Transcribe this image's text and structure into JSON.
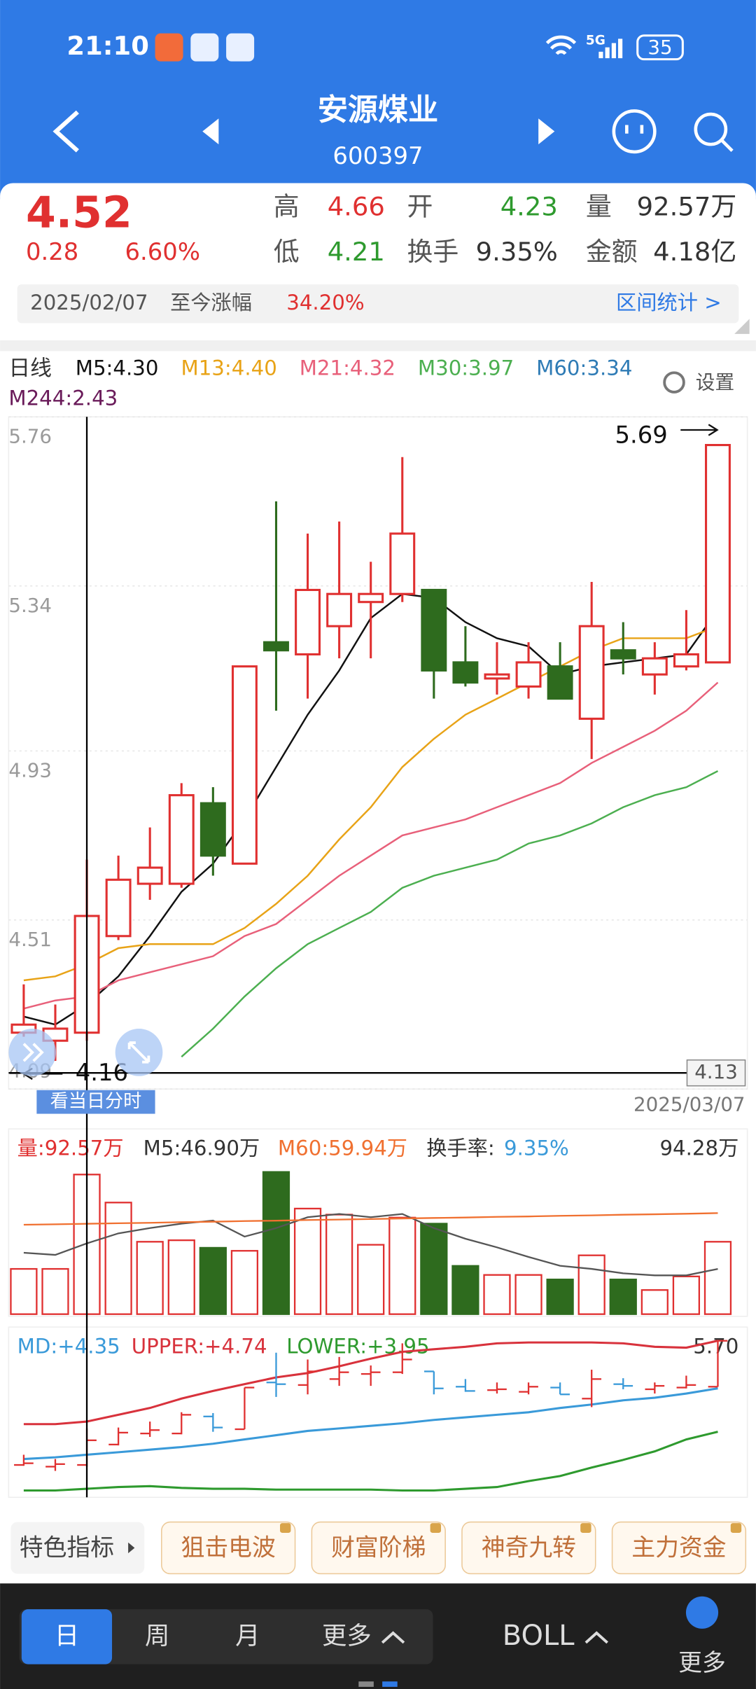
{
  "status_bar": {
    "time": "21:10",
    "network": "5G",
    "battery": "35"
  },
  "header": {
    "name": "安源煤业",
    "code": "600397"
  },
  "quote": {
    "price": "4.52",
    "change": "0.28",
    "change_pct": "6.60%",
    "high_label": "高",
    "high": "4.66",
    "open_label": "开",
    "open": "4.23",
    "volume_label": "量",
    "volume": "92.57万",
    "low_label": "低",
    "low": "4.21",
    "turnover_label": "换手",
    "turnover": "9.35%",
    "amount_label": "金额",
    "amount": "4.18亿"
  },
  "range_bar": {
    "date": "2025/02/07",
    "gain_label": "至今涨幅",
    "gain": "34.20%",
    "stats_link": "区间统计 >"
  },
  "chart_data": [
    {
      "type": "candlestick",
      "period": "日线",
      "settings": "设置",
      "legend": [
        {
          "label": "M5:4.30",
          "color": "#111111"
        },
        {
          "label": "M13:4.40",
          "color": "#e8a317"
        },
        {
          "label": "M21:4.32",
          "color": "#e8607a"
        },
        {
          "label": "M30:3.97",
          "color": "#4caf50"
        },
        {
          "label": "M60:3.34",
          "color": "#2e7bb5"
        },
        {
          "label": "M244:2.43",
          "color": "#6a1b5a"
        }
      ],
      "open": [
        4.23,
        4.21,
        4.23,
        4.47,
        4.6,
        4.6,
        4.8,
        4.65,
        5.2,
        5.17,
        5.24,
        5.3,
        5.32,
        5.33,
        5.15,
        5.11,
        5.09,
        5.14,
        5.01,
        5.18,
        5.12,
        5.14,
        5.15
      ],
      "high": [
        4.35,
        4.3,
        4.66,
        4.67,
        4.74,
        4.85,
        4.84,
        5.14,
        5.55,
        5.47,
        5.5,
        5.4,
        5.66,
        5.33,
        5.24,
        5.2,
        5.2,
        5.2,
        5.35,
        5.25,
        5.2,
        5.28,
        5.69
      ],
      "low": [
        4.22,
        4.16,
        4.21,
        4.46,
        4.56,
        4.59,
        4.62,
        4.65,
        5.03,
        5.06,
        5.16,
        5.16,
        5.3,
        5.06,
        5.09,
        5.07,
        5.06,
        5.06,
        4.91,
        5.12,
        5.07,
        5.13,
        5.15
      ],
      "close": [
        4.25,
        4.24,
        4.52,
        4.61,
        4.64,
        4.82,
        4.67,
        5.14,
        5.18,
        5.33,
        5.32,
        5.32,
        5.47,
        5.13,
        5.1,
        5.12,
        5.15,
        5.06,
        5.24,
        5.16,
        5.16,
        5.17,
        5.69
      ],
      "up_color": "#e03030",
      "down_color": "#2e6b1e",
      "series": [
        {
          "name": "M5",
          "color": "#111111",
          "values": [
            4.27,
            4.25,
            4.3,
            4.37,
            4.47,
            4.58,
            4.65,
            4.76,
            4.89,
            5.02,
            5.13,
            5.26,
            5.32,
            5.31,
            5.25,
            5.21,
            5.19,
            5.12,
            5.14,
            5.15,
            5.16,
            5.17,
            5.28
          ]
        },
        {
          "name": "M13",
          "color": "#e8a317",
          "values": [
            4.36,
            4.37,
            4.4,
            4.44,
            4.45,
            4.45,
            4.45,
            4.49,
            4.55,
            4.62,
            4.71,
            4.79,
            4.89,
            4.96,
            5.02,
            5.06,
            5.1,
            5.14,
            5.18,
            5.21,
            5.21,
            5.21,
            5.24
          ]
        },
        {
          "name": "M21",
          "color": "#e8607a",
          "values": [
            4.29,
            4.31,
            4.32,
            4.36,
            4.38,
            4.4,
            4.42,
            4.47,
            4.5,
            4.56,
            4.62,
            4.67,
            4.72,
            4.74,
            4.76,
            4.79,
            4.82,
            4.85,
            4.9,
            4.94,
            4.98,
            5.03,
            5.1
          ]
        },
        {
          "name": "M30",
          "color": "#4caf50",
          "values": [
            null,
            null,
            null,
            null,
            null,
            4.17,
            4.24,
            4.32,
            4.39,
            4.45,
            4.49,
            4.53,
            4.59,
            4.62,
            4.64,
            4.66,
            4.7,
            4.72,
            4.75,
            4.79,
            4.82,
            4.84,
            4.88
          ]
        }
      ],
      "ylim": [
        4.09,
        5.76
      ],
      "yticks": [
        5.76,
        5.34,
        4.93,
        4.51,
        4.09
      ],
      "grid": true,
      "max_label": 5.69,
      "min_label": 4.16,
      "cursor_price": 4.13,
      "cursor_button": "看当日分时",
      "x_end_label": "2025/03/07"
    },
    {
      "type": "bar",
      "legend": [
        {
          "label": "量:92.57万",
          "color": "#e03030"
        },
        {
          "label": "M5:46.90万",
          "color": "#333333"
        },
        {
          "label": "M60:59.94万",
          "color": "#f07030"
        },
        {
          "label": "换手率:",
          "color": "#333333"
        },
        {
          "label": "9.35%",
          "color": "#3a9ad9"
        }
      ],
      "max_label": "94.28万",
      "values": [
        30,
        30,
        92.57,
        74,
        48,
        49,
        44,
        42,
        94.28,
        70,
        66,
        46,
        64,
        60,
        32,
        26,
        26,
        23,
        39,
        23,
        16,
        25,
        48
      ],
      "series": [
        {
          "name": "M5",
          "color": "#555555",
          "values": [
            40.7,
            39.3,
            46.9,
            53.6,
            57.1,
            60,
            62.1,
            51.4,
            57.1,
            64.3,
            66.4,
            64.3,
            66.4,
            57.1,
            50,
            44.3,
            37.9,
            32.1,
            30,
            27.1,
            25.7,
            25.7,
            30
          ]
        },
        {
          "name": "M60",
          "color": "#f07030",
          "values": [
            59.3,
            59.6,
            59.94,
            60.3,
            60.6,
            61,
            61.3,
            61.7,
            62,
            62.4,
            62.7,
            63.1,
            63.4,
            63.8,
            64.1,
            64.5,
            64.8,
            65.2,
            65.5,
            65.9,
            66.2,
            66.6,
            67
          ]
        }
      ],
      "ylim": [
        0,
        94.28
      ]
    },
    {
      "type": "ohlc",
      "legend": [
        {
          "label": "MD:+4.35",
          "color": "#3a9ad9"
        },
        {
          "label": "UPPER:+4.74",
          "color": "#d8323c"
        },
        {
          "label": "LOWER:+3.95",
          "color": "#2e9a2e"
        }
      ],
      "max_label": "5.70",
      "up_color": "#e03030",
      "down_color": "#3a9ad9",
      "series": [
        {
          "name": "MID",
          "color": "#3a9ad9",
          "values": [
            4.3,
            4.32,
            4.35,
            4.38,
            4.41,
            4.44,
            4.48,
            4.53,
            4.58,
            4.63,
            4.66,
            4.69,
            4.72,
            4.76,
            4.79,
            4.82,
            4.85,
            4.9,
            4.94,
            4.99,
            5.02,
            5.07,
            5.13
          ]
        },
        {
          "name": "UPPER",
          "color": "#d8323c",
          "values": [
            4.71,
            4.71,
            4.74,
            4.82,
            4.9,
            5.01,
            5.1,
            5.18,
            5.26,
            5.31,
            5.39,
            5.48,
            5.56,
            5.59,
            5.62,
            5.66,
            5.67,
            5.67,
            5.67,
            5.66,
            5.62,
            5.61,
            5.69
          ]
        },
        {
          "name": "LOWER",
          "color": "#2e9a2e",
          "values": [
            3.93,
            3.93,
            3.95,
            3.97,
            3.98,
            3.96,
            3.95,
            3.95,
            3.94,
            3.94,
            3.94,
            3.94,
            3.93,
            3.93,
            3.95,
            3.97,
            4.04,
            4.1,
            4.2,
            4.29,
            4.39,
            4.53,
            4.62
          ]
        }
      ],
      "ylim": [
        3.85,
        5.75
      ]
    }
  ],
  "indicator_bar": {
    "label": "特色指标",
    "chips": [
      "狙击电波",
      "财富阶梯",
      "神奇九转",
      "主力资金"
    ]
  },
  "bottom_bar": {
    "period_tabs": [
      "日",
      "周",
      "月",
      "更多"
    ],
    "indicator": "BOLL",
    "more": "更多"
  }
}
